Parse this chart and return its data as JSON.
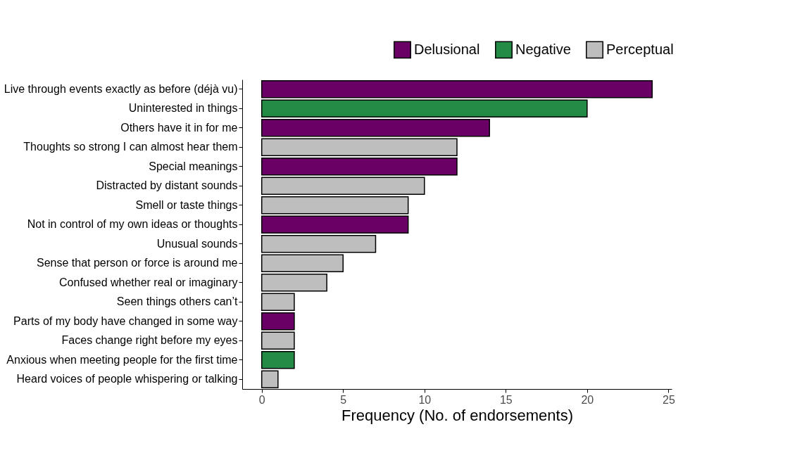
{
  "chart_data": {
    "type": "bar",
    "orientation": "horizontal",
    "categories": [
      "Live through events exactly as before (déjà vu)",
      "Uninterested in things",
      "Others have it in for me",
      "Thoughts so strong I can almost hear them",
      "Special meanings",
      "Distracted by distant sounds",
      "Smell or taste things",
      "Not in control of my own ideas or thoughts",
      "Unusual sounds",
      "Sense that person or force is around me",
      "Confused whether real or imaginary",
      "Seen things others can’t",
      "Parts of my body have changed in some way",
      "Faces change right before my eyes",
      "Anxious when meeting people for the first time",
      "Heard voices of people whispering or talking"
    ],
    "series": [
      {
        "name": "Delusional",
        "color": "#6a0066",
        "values": [
          24,
          null,
          14,
          null,
          12,
          null,
          null,
          9,
          null,
          null,
          null,
          null,
          2,
          null,
          null,
          null
        ]
      },
      {
        "name": "Negative",
        "color": "#238b45",
        "values": [
          null,
          20,
          null,
          null,
          null,
          null,
          null,
          null,
          null,
          null,
          null,
          null,
          null,
          null,
          2,
          null
        ]
      },
      {
        "name": "Perceptual",
        "color": "#bebebe",
        "values": [
          null,
          null,
          null,
          12,
          null,
          10,
          9,
          null,
          7,
          5,
          4,
          2,
          null,
          2,
          null,
          1
        ]
      }
    ],
    "xlim": [
      -1.2,
      25.2
    ],
    "xticks": [
      0,
      5,
      10,
      15,
      20,
      25
    ],
    "xlabel": "Frequency (No. of endorsements)",
    "legend": "top right",
    "grid": false
  }
}
